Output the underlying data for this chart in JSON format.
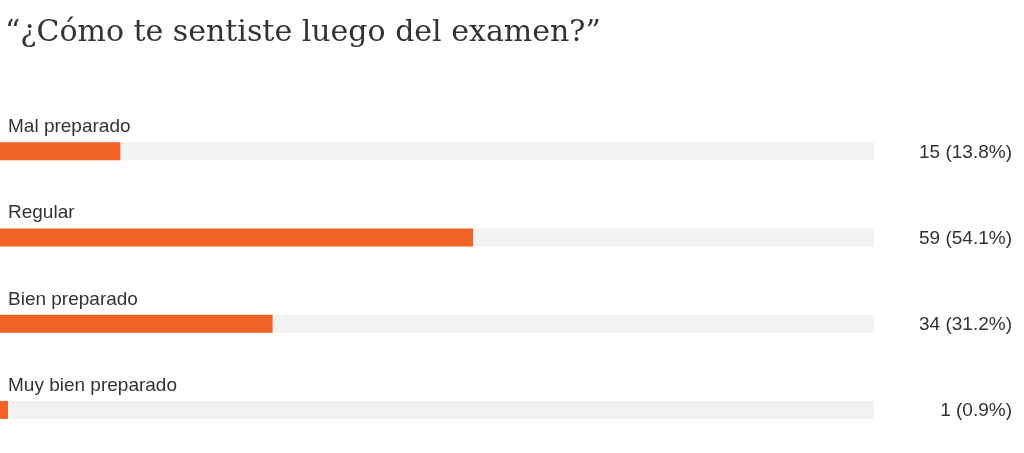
{
  "chart_data": {
    "type": "bar",
    "orientation": "horizontal",
    "title": "“¿Cómo te sentiste luego del examen?”",
    "categories": [
      "Mal preparado",
      "Regular",
      "Bien preparado",
      "Muy bien preparado"
    ],
    "values": [
      15,
      59,
      34,
      1
    ],
    "value_labels": [
      "15 (13.8%)",
      "59 (54.1%)",
      "34 (31.2%)",
      "1 (0.9%)"
    ],
    "color": "#f26125",
    "xlim": [
      0,
      109
    ]
  }
}
